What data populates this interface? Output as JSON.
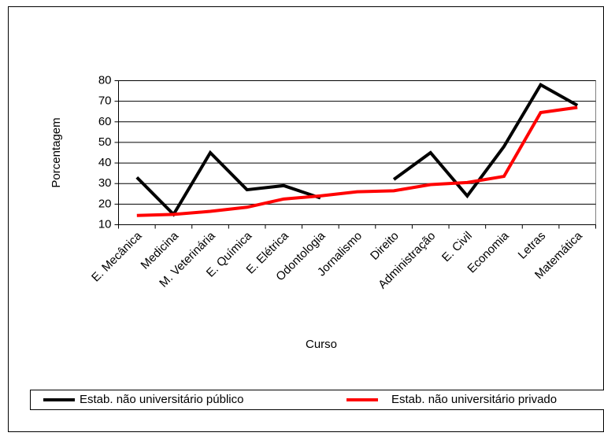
{
  "chart_data": {
    "type": "line",
    "categories": [
      "E. Mecânica",
      "Medicina",
      "M. Veterinária",
      "E. Química",
      "E. Elétrica",
      "Odontologia",
      "Jornalismo",
      "Direito",
      "Administração",
      "E. Civil",
      "Economia",
      "Letras",
      "Matemática"
    ],
    "series": [
      {
        "name": "Estab. não universitário público",
        "color": "#000000",
        "values": [
          33,
          15,
          45,
          27,
          29,
          23,
          null,
          32,
          45,
          24,
          48,
          78,
          68
        ]
      },
      {
        "name": "Estab. não universitário privado",
        "color": "#ff0000",
        "values": [
          14.5,
          15,
          16.5,
          18.5,
          22.5,
          24,
          26,
          26.5,
          29.5,
          30.5,
          33.5,
          64.5,
          67
        ]
      }
    ],
    "xlabel": "Curso",
    "ylabel": "Porcentagem",
    "ylim": [
      10,
      80
    ],
    "yticks": [
      10,
      20,
      30,
      40,
      50,
      60,
      70,
      80
    ],
    "grid": true
  }
}
